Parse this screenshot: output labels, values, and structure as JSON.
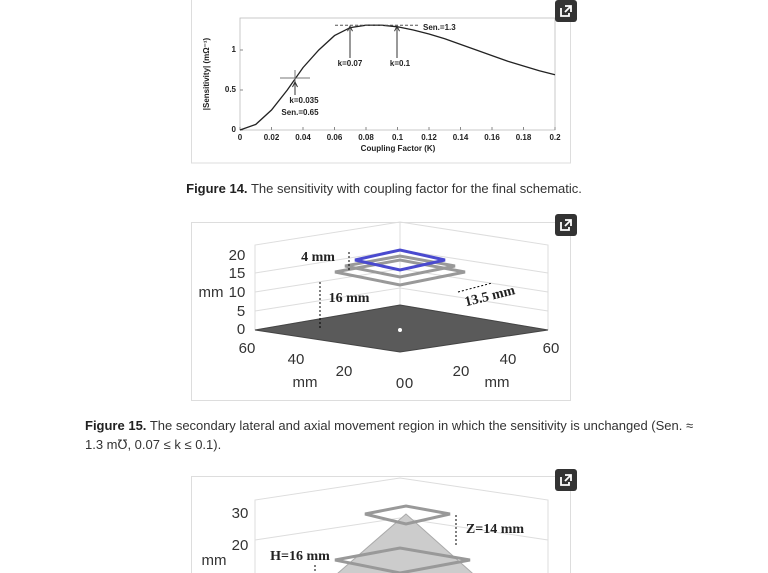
{
  "figures": [
    {
      "chart_data": {
        "type": "line",
        "ylabel": "|Sensitivity| (mΩ⁻¹)",
        "xlabel": "Coupling Factor (K)",
        "x": [
          0,
          0.01,
          0.02,
          0.03,
          0.04,
          0.05,
          0.06,
          0.07,
          0.08,
          0.09,
          0.1,
          0.11,
          0.12,
          0.13,
          0.14,
          0.15,
          0.16,
          0.17,
          0.18,
          0.19,
          0.2
        ],
        "series": [
          {
            "color": "#222222",
            "values": [
              0,
              0.07,
              0.25,
              0.5,
              0.78,
              1.0,
              1.18,
              1.28,
              1.31,
              1.31,
              1.29,
              1.25,
              1.2,
              1.14,
              1.07,
              1.0,
              0.93,
              0.86,
              0.8,
              0.74,
              0.69
            ]
          }
        ],
        "xlim": [
          0,
          0.2
        ],
        "ylim": [
          0,
          1.4
        ],
        "xticks": [
          0,
          0.02,
          0.04,
          0.06,
          0.08,
          0.1,
          0.12,
          0.14,
          0.16,
          0.18,
          0.2
        ],
        "yticks": [
          0,
          0.5,
          1
        ],
        "annotations": [
          "Sen.=1.3",
          "k=0.07",
          "k=0.1",
          "k=0.035",
          "Sen.=0.65"
        ]
      },
      "caption": {
        "label": "Figure 14.",
        "text": "The sensitivity with coupling factor for the final schematic."
      }
    },
    {
      "plot": {
        "z_ticks": [
          20,
          15,
          10,
          5,
          0
        ],
        "z_label": "mm",
        "x_ticks": [
          60,
          40,
          20,
          0
        ],
        "x_label": "mm",
        "y_ticks": [
          0,
          20,
          40,
          60
        ],
        "y_label": "mm",
        "annotations": [
          "4 mm",
          "16 mm",
          "13.5 mm"
        ]
      },
      "caption": {
        "label": "Figure 15.",
        "text": "The secondary lateral and axial movement region in which the sensitivity is unchanged (Sen. ≈ 1.3 m℧, 0.07 ≤ k ≤ 0.1)."
      }
    },
    {
      "plot": {
        "z_ticks": [
          30,
          20
        ],
        "z_label": "mm",
        "annotations": [
          "H=16 mm",
          "Z=14 mm"
        ]
      }
    }
  ]
}
